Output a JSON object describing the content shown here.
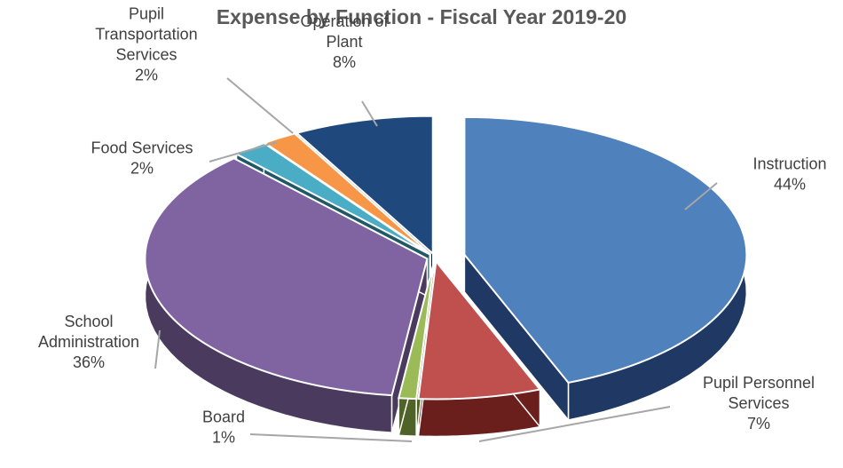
{
  "chart_data": {
    "type": "pie",
    "title": "Expense by Function - Fiscal Year 2019-20",
    "slices": [
      {
        "label": [
          "Instruction"
        ],
        "pct_label": "44%",
        "value": 44,
        "color": "#4f81bd",
        "dark": "#1f3864"
      },
      {
        "label": [
          "Pupil Personnel",
          "Services"
        ],
        "pct_label": "7%",
        "value": 7,
        "color": "#c0504d",
        "dark": "#6b1f1d"
      },
      {
        "label": [
          "Board"
        ],
        "pct_label": "1%",
        "value": 1,
        "color": "#9bbb59",
        "dark": "#4f6228"
      },
      {
        "label": [
          "School",
          "Administration"
        ],
        "pct_label": "36%",
        "value": 36,
        "color": "#8064a2",
        "dark": "#4a3a5e"
      },
      {
        "label": [
          "Food Services"
        ],
        "pct_label": "2%",
        "value": 2,
        "color": "#4bacc6",
        "dark": "#215866"
      },
      {
        "label": [
          "Pupil",
          "Transportation",
          "Services"
        ],
        "pct_label": "2%",
        "value": 2,
        "color": "#f79646",
        "dark": "#8a4a14"
      },
      {
        "label": [
          "Operation of",
          "Plant"
        ],
        "pct_label": "8%",
        "value": 8,
        "color": "#1f497d",
        "dark": "#0f243e"
      }
    ]
  }
}
